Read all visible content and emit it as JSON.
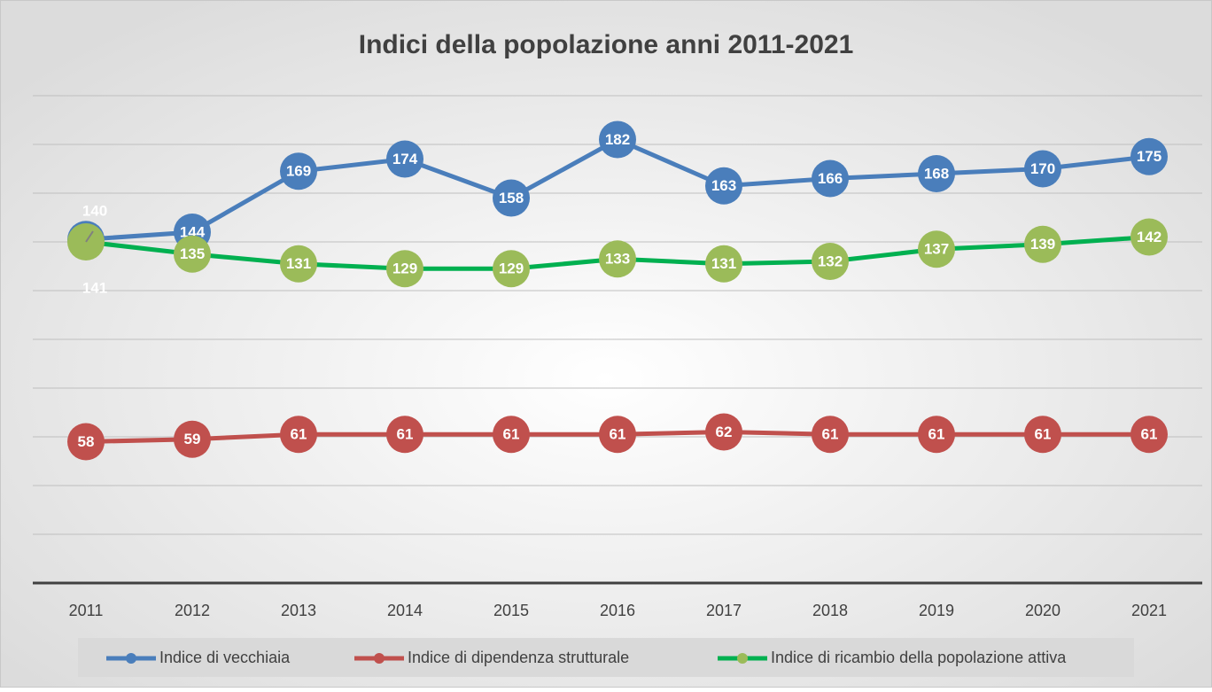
{
  "chart_data": {
    "type": "line",
    "title": "Indici della popolazione anni 2011-2021",
    "categories": [
      "2011",
      "2012",
      "2013",
      "2014",
      "2015",
      "2016",
      "2017",
      "2018",
      "2019",
      "2020",
      "2021"
    ],
    "series": [
      {
        "name": "Indice di vecchiaia",
        "color": "#4a7ebb",
        "marker_color": "#4a7ebb",
        "values": [
          141,
          144,
          169,
          174,
          158,
          182,
          163,
          166,
          168,
          170,
          175
        ]
      },
      {
        "name": "Indice di dipendenza strutturale",
        "color": "#c0504d",
        "marker_color": "#c0504d",
        "values": [
          58,
          59,
          61,
          61,
          61,
          61,
          62,
          61,
          61,
          61,
          61
        ]
      },
      {
        "name": "Indice di ricambio della popolazione attiva",
        "color": "#00b050",
        "marker_color": "#9bbb59",
        "values": [
          140,
          135,
          131,
          129,
          129,
          133,
          131,
          132,
          137,
          139,
          142
        ]
      }
    ],
    "ylim": [
      0,
      200
    ],
    "yticks": [
      0,
      20,
      40,
      60,
      80,
      100,
      120,
      140,
      160,
      180,
      200
    ],
    "grid": true,
    "legend": "bottom"
  }
}
